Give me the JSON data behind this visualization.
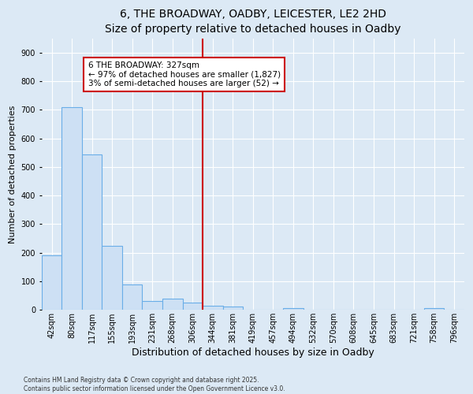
{
  "title": "6, THE BROADWAY, OADBY, LEICESTER, LE2 2HD",
  "subtitle": "Size of property relative to detached houses in Oadby",
  "xlabel": "Distribution of detached houses by size in Oadby",
  "ylabel": "Number of detached properties",
  "bin_labels": [
    "42sqm",
    "80sqm",
    "117sqm",
    "155sqm",
    "193sqm",
    "231sqm",
    "268sqm",
    "306sqm",
    "344sqm",
    "381sqm",
    "419sqm",
    "457sqm",
    "494sqm",
    "532sqm",
    "570sqm",
    "608sqm",
    "645sqm",
    "683sqm",
    "721sqm",
    "758sqm",
    "796sqm"
  ],
  "bar_values": [
    190,
    710,
    545,
    225,
    90,
    30,
    38,
    25,
    15,
    12,
    0,
    0,
    5,
    0,
    0,
    0,
    0,
    0,
    0,
    5,
    0
  ],
  "bar_color": "#cde0f4",
  "bar_edge_color": "#6aaee8",
  "vline_x_index": 7,
  "vline_color": "#cc0000",
  "annotation_title": "6 THE BROADWAY: 327sqm",
  "annotation_line2": "← 97% of detached houses are smaller (1,827)",
  "annotation_line3": "3% of semi-detached houses are larger (52) →",
  "annotation_box_facecolor": "#ffffff",
  "annotation_box_edgecolor": "#cc0000",
  "ylim": [
    0,
    950
  ],
  "yticks": [
    0,
    100,
    200,
    300,
    400,
    500,
    600,
    700,
    800,
    900
  ],
  "footer_line1": "Contains HM Land Registry data © Crown copyright and database right 2025.",
  "footer_line2": "Contains public sector information licensed under the Open Government Licence v3.0.",
  "bg_color": "#dce9f5",
  "plot_bg_color": "#dce9f5",
  "grid_color": "#ffffff",
  "title_fontsize": 10,
  "subtitle_fontsize": 9,
  "xlabel_fontsize": 9,
  "ylabel_fontsize": 8,
  "tick_label_fontsize": 7,
  "footer_fontsize": 5.5
}
